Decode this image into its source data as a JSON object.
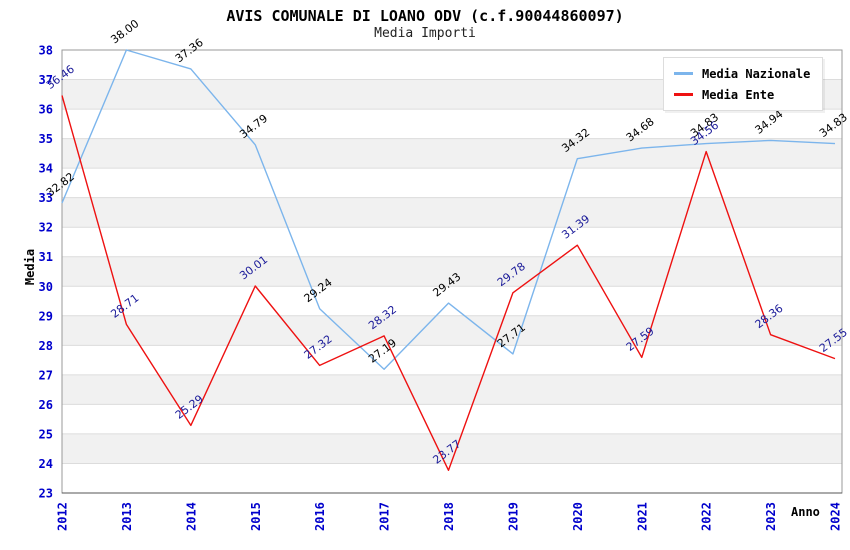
{
  "title": "AVIS COMUNALE DI LOANO ODV (c.f.90044860097)",
  "subtitle": "Media Importi",
  "colors": {
    "axis_tick_text": "#0000CC",
    "plot_border": "#999999",
    "grid_line": "#dcdcdc",
    "band_fill": "#f1f1f1",
    "nazionale_line": "#7CB5EC",
    "ente_line": "#EE1111",
    "nazionale_label_text": "#000000",
    "ente_label_text": "#1A1A99"
  },
  "chart_data": {
    "type": "line",
    "x": [
      2012,
      2013,
      2014,
      2015,
      2016,
      2017,
      2018,
      2019,
      2020,
      2021,
      2022,
      2023,
      2024
    ],
    "series": [
      {
        "name": "Media Nazionale",
        "color": "#7CB5EC",
        "label_color": "#000000",
        "values": [
          32.82,
          38.0,
          37.36,
          34.79,
          29.24,
          27.19,
          29.43,
          27.71,
          34.32,
          34.68,
          34.83,
          34.94,
          34.83
        ],
        "labels": [
          "32.82",
          "38.00",
          "37.36",
          "34.79",
          "29.24",
          "27.19",
          "29.43",
          "27.71",
          "34.32",
          "34.68",
          "34.83",
          "34.94",
          "34.83"
        ]
      },
      {
        "name": "Media Ente",
        "color": "#EE1111",
        "label_color": "#1A1A99",
        "values": [
          36.46,
          28.71,
          25.29,
          30.01,
          27.32,
          28.32,
          23.77,
          29.78,
          31.39,
          27.59,
          34.56,
          28.36,
          27.55
        ],
        "labels": [
          "36.46",
          "28.71",
          "25.29",
          "30.01",
          "27.32",
          "28.32",
          "23.77",
          "29.78",
          "31.39",
          "27.59",
          "34.56",
          "28.36",
          "27.55"
        ]
      }
    ],
    "xlabel": "Anno",
    "ylabel": "Media",
    "ylim": [
      23,
      38
    ],
    "ytick_step": 1,
    "grid": "horizontal-bands-alternating",
    "legend_position": "top-right"
  }
}
